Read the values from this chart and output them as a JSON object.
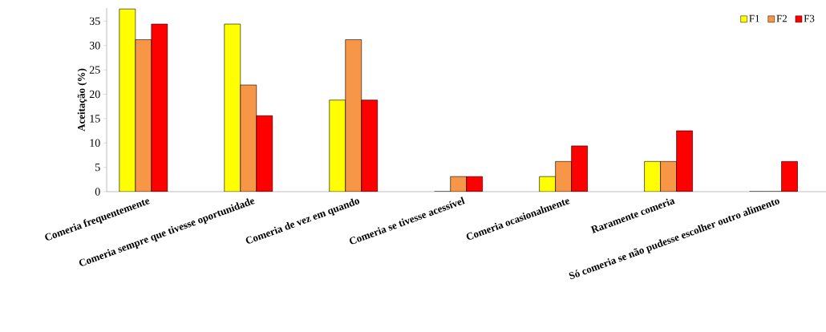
{
  "chart_data": {
    "type": "bar",
    "ylabel": "Aceitação (%)",
    "categories": [
      "Comeria frequentemente",
      "Comeria sempre que tivesse oportunidade",
      "Comeria de vez em quando",
      "Comeria se tivesse acessível",
      "Comeria ocasionalmente",
      "Raramente comeria",
      "Só comeria se não pudesse escolher outro alimento"
    ],
    "series": [
      {
        "name": "F1",
        "color": "#ffff00",
        "values": [
          37.5,
          34.4,
          18.8,
          0,
          3.1,
          6.2,
          0
        ]
      },
      {
        "name": "F2",
        "color": "#f79646",
        "values": [
          31.2,
          21.9,
          31.2,
          3.1,
          6.2,
          6.2,
          0
        ]
      },
      {
        "name": "F3",
        "color": "#ff0000",
        "values": [
          34.4,
          15.6,
          18.8,
          3.1,
          9.4,
          12.5,
          6.2
        ]
      }
    ],
    "ylim": [
      0,
      37.7
    ],
    "yticks": [
      0,
      5,
      10,
      15,
      20,
      25,
      30,
      35
    ],
    "legend": "top right"
  }
}
